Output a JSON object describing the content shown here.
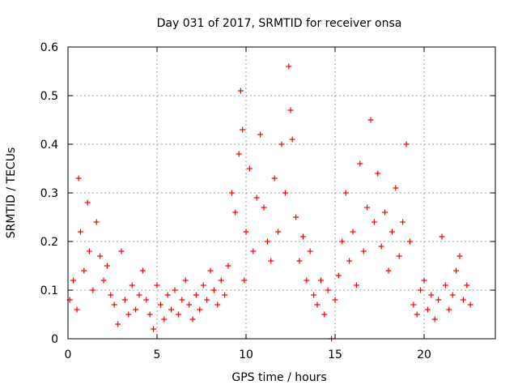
{
  "chart_data": {
    "type": "scatter",
    "title": "Day 031 of 2017, SRMTID for receiver onsa",
    "xlabel": "GPS time / hours",
    "ylabel": "SRMTID / TECUs",
    "xlim": [
      0,
      24
    ],
    "ylim": [
      0,
      0.6
    ],
    "xticks": [
      0,
      5,
      10,
      15,
      20
    ],
    "yticks": [
      0,
      0.1,
      0.2,
      0.3,
      0.4,
      0.5,
      0.6
    ],
    "xtick_labels": [
      "0",
      "5",
      "10",
      "15",
      "20"
    ],
    "ytick_labels": [
      "0",
      "0.1",
      "0.2",
      "0.3",
      "0.4",
      "0.5",
      "0.6"
    ],
    "grid": true,
    "marker": "plus",
    "color": "#ff0000",
    "series": [
      {
        "name": "SRMTID",
        "points": [
          [
            0.1,
            0.08
          ],
          [
            0.3,
            0.12
          ],
          [
            0.5,
            0.06
          ],
          [
            0.6,
            0.33
          ],
          [
            0.7,
            0.22
          ],
          [
            0.9,
            0.14
          ],
          [
            1.1,
            0.28
          ],
          [
            1.2,
            0.18
          ],
          [
            1.4,
            0.1
          ],
          [
            1.6,
            0.24
          ],
          [
            1.8,
            0.17
          ],
          [
            2.0,
            0.12
          ],
          [
            2.2,
            0.15
          ],
          [
            2.4,
            0.09
          ],
          [
            2.6,
            0.07
          ],
          [
            2.8,
            0.03
          ],
          [
            3.0,
            0.18
          ],
          [
            3.2,
            0.08
          ],
          [
            3.4,
            0.05
          ],
          [
            3.6,
            0.11
          ],
          [
            3.8,
            0.06
          ],
          [
            4.0,
            0.09
          ],
          [
            4.2,
            0.14
          ],
          [
            4.4,
            0.08
          ],
          [
            4.6,
            0.05
          ],
          [
            4.8,
            0.02
          ],
          [
            5.0,
            0.11
          ],
          [
            5.2,
            0.07
          ],
          [
            5.4,
            0.04
          ],
          [
            5.6,
            0.09
          ],
          [
            5.8,
            0.06
          ],
          [
            6.0,
            0.1
          ],
          [
            6.2,
            0.05
          ],
          [
            6.4,
            0.08
          ],
          [
            6.6,
            0.12
          ],
          [
            6.8,
            0.07
          ],
          [
            7.0,
            0.04
          ],
          [
            7.2,
            0.09
          ],
          [
            7.4,
            0.06
          ],
          [
            7.6,
            0.11
          ],
          [
            7.8,
            0.08
          ],
          [
            8.0,
            0.14
          ],
          [
            8.2,
            0.1
          ],
          [
            8.4,
            0.07
          ],
          [
            8.6,
            0.12
          ],
          [
            8.8,
            0.09
          ],
          [
            9.0,
            0.15
          ],
          [
            9.2,
            0.3
          ],
          [
            9.4,
            0.26
          ],
          [
            9.6,
            0.38
          ],
          [
            9.7,
            0.51
          ],
          [
            9.8,
            0.43
          ],
          [
            9.9,
            0.12
          ],
          [
            10.0,
            0.22
          ],
          [
            10.2,
            0.35
          ],
          [
            10.4,
            0.18
          ],
          [
            10.6,
            0.29
          ],
          [
            10.8,
            0.42
          ],
          [
            11.0,
            0.27
          ],
          [
            11.2,
            0.2
          ],
          [
            11.4,
            0.16
          ],
          [
            11.6,
            0.33
          ],
          [
            11.8,
            0.22
          ],
          [
            12.0,
            0.4
          ],
          [
            12.2,
            0.3
          ],
          [
            12.4,
            0.56
          ],
          [
            12.5,
            0.47
          ],
          [
            12.6,
            0.41
          ],
          [
            12.8,
            0.25
          ],
          [
            13.0,
            0.16
          ],
          [
            13.2,
            0.21
          ],
          [
            13.4,
            0.12
          ],
          [
            13.6,
            0.18
          ],
          [
            13.8,
            0.09
          ],
          [
            14.0,
            0.07
          ],
          [
            14.2,
            0.12
          ],
          [
            14.4,
            0.05
          ],
          [
            14.6,
            0.1
          ],
          [
            14.8,
            0.0
          ],
          [
            15.0,
            0.08
          ],
          [
            15.2,
            0.13
          ],
          [
            15.4,
            0.2
          ],
          [
            15.6,
            0.3
          ],
          [
            15.8,
            0.16
          ],
          [
            16.0,
            0.22
          ],
          [
            16.2,
            0.11
          ],
          [
            16.4,
            0.36
          ],
          [
            16.6,
            0.18
          ],
          [
            16.8,
            0.27
          ],
          [
            17.0,
            0.45
          ],
          [
            17.2,
            0.24
          ],
          [
            17.4,
            0.34
          ],
          [
            17.6,
            0.19
          ],
          [
            17.8,
            0.26
          ],
          [
            18.0,
            0.14
          ],
          [
            18.2,
            0.22
          ],
          [
            18.4,
            0.31
          ],
          [
            18.6,
            0.17
          ],
          [
            18.8,
            0.24
          ],
          [
            19.0,
            0.4
          ],
          [
            19.2,
            0.2
          ],
          [
            19.4,
            0.07
          ],
          [
            19.6,
            0.05
          ],
          [
            19.8,
            0.1
          ],
          [
            20.0,
            0.12
          ],
          [
            20.2,
            0.06
          ],
          [
            20.4,
            0.09
          ],
          [
            20.6,
            0.04
          ],
          [
            20.8,
            0.08
          ],
          [
            21.0,
            0.21
          ],
          [
            21.2,
            0.11
          ],
          [
            21.4,
            0.06
          ],
          [
            21.6,
            0.09
          ],
          [
            21.8,
            0.14
          ],
          [
            22.0,
            0.17
          ],
          [
            22.2,
            0.08
          ],
          [
            22.4,
            0.11
          ],
          [
            22.6,
            0.07
          ]
        ]
      }
    ]
  }
}
